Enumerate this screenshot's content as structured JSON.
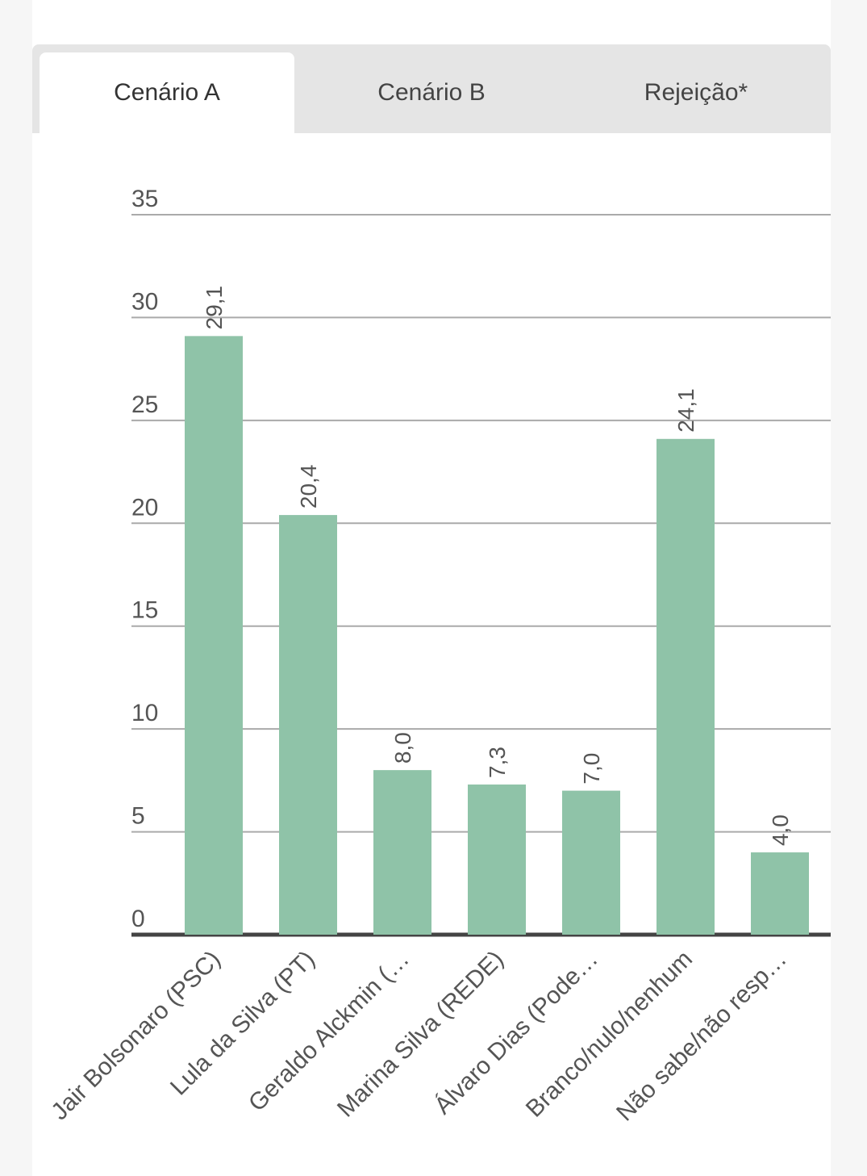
{
  "tabs": [
    {
      "label": "Cenário A",
      "active": true
    },
    {
      "label": "Cenário B",
      "active": false
    },
    {
      "label": "Rejeição*",
      "active": false
    }
  ],
  "colors": {
    "bar": "#8fc3a8",
    "grid": "#aaaaaa",
    "axis": "#444444",
    "text": "#555555"
  },
  "chart_data": {
    "type": "bar",
    "categories": [
      "Jair Bolsonaro (PSC)",
      "Lula da Silva (PT)",
      "Geraldo Alckmin (…",
      "Marina Silva (REDE)",
      "Álvaro Dias (Pode…",
      "Branco/nulo/nenhum",
      "Não sabe/não resp…"
    ],
    "values": [
      29.1,
      20.4,
      8.0,
      7.3,
      7.0,
      24.1,
      4.0
    ],
    "value_labels": [
      "29,1",
      "20,4",
      "8,0",
      "7,3",
      "7,0",
      "24,1",
      "4,0"
    ],
    "ylim": [
      0,
      35
    ],
    "yticks": [
      0,
      5,
      10,
      15,
      20,
      25,
      30,
      35
    ],
    "grid": true,
    "title": "",
    "xlabel": "",
    "ylabel": ""
  }
}
